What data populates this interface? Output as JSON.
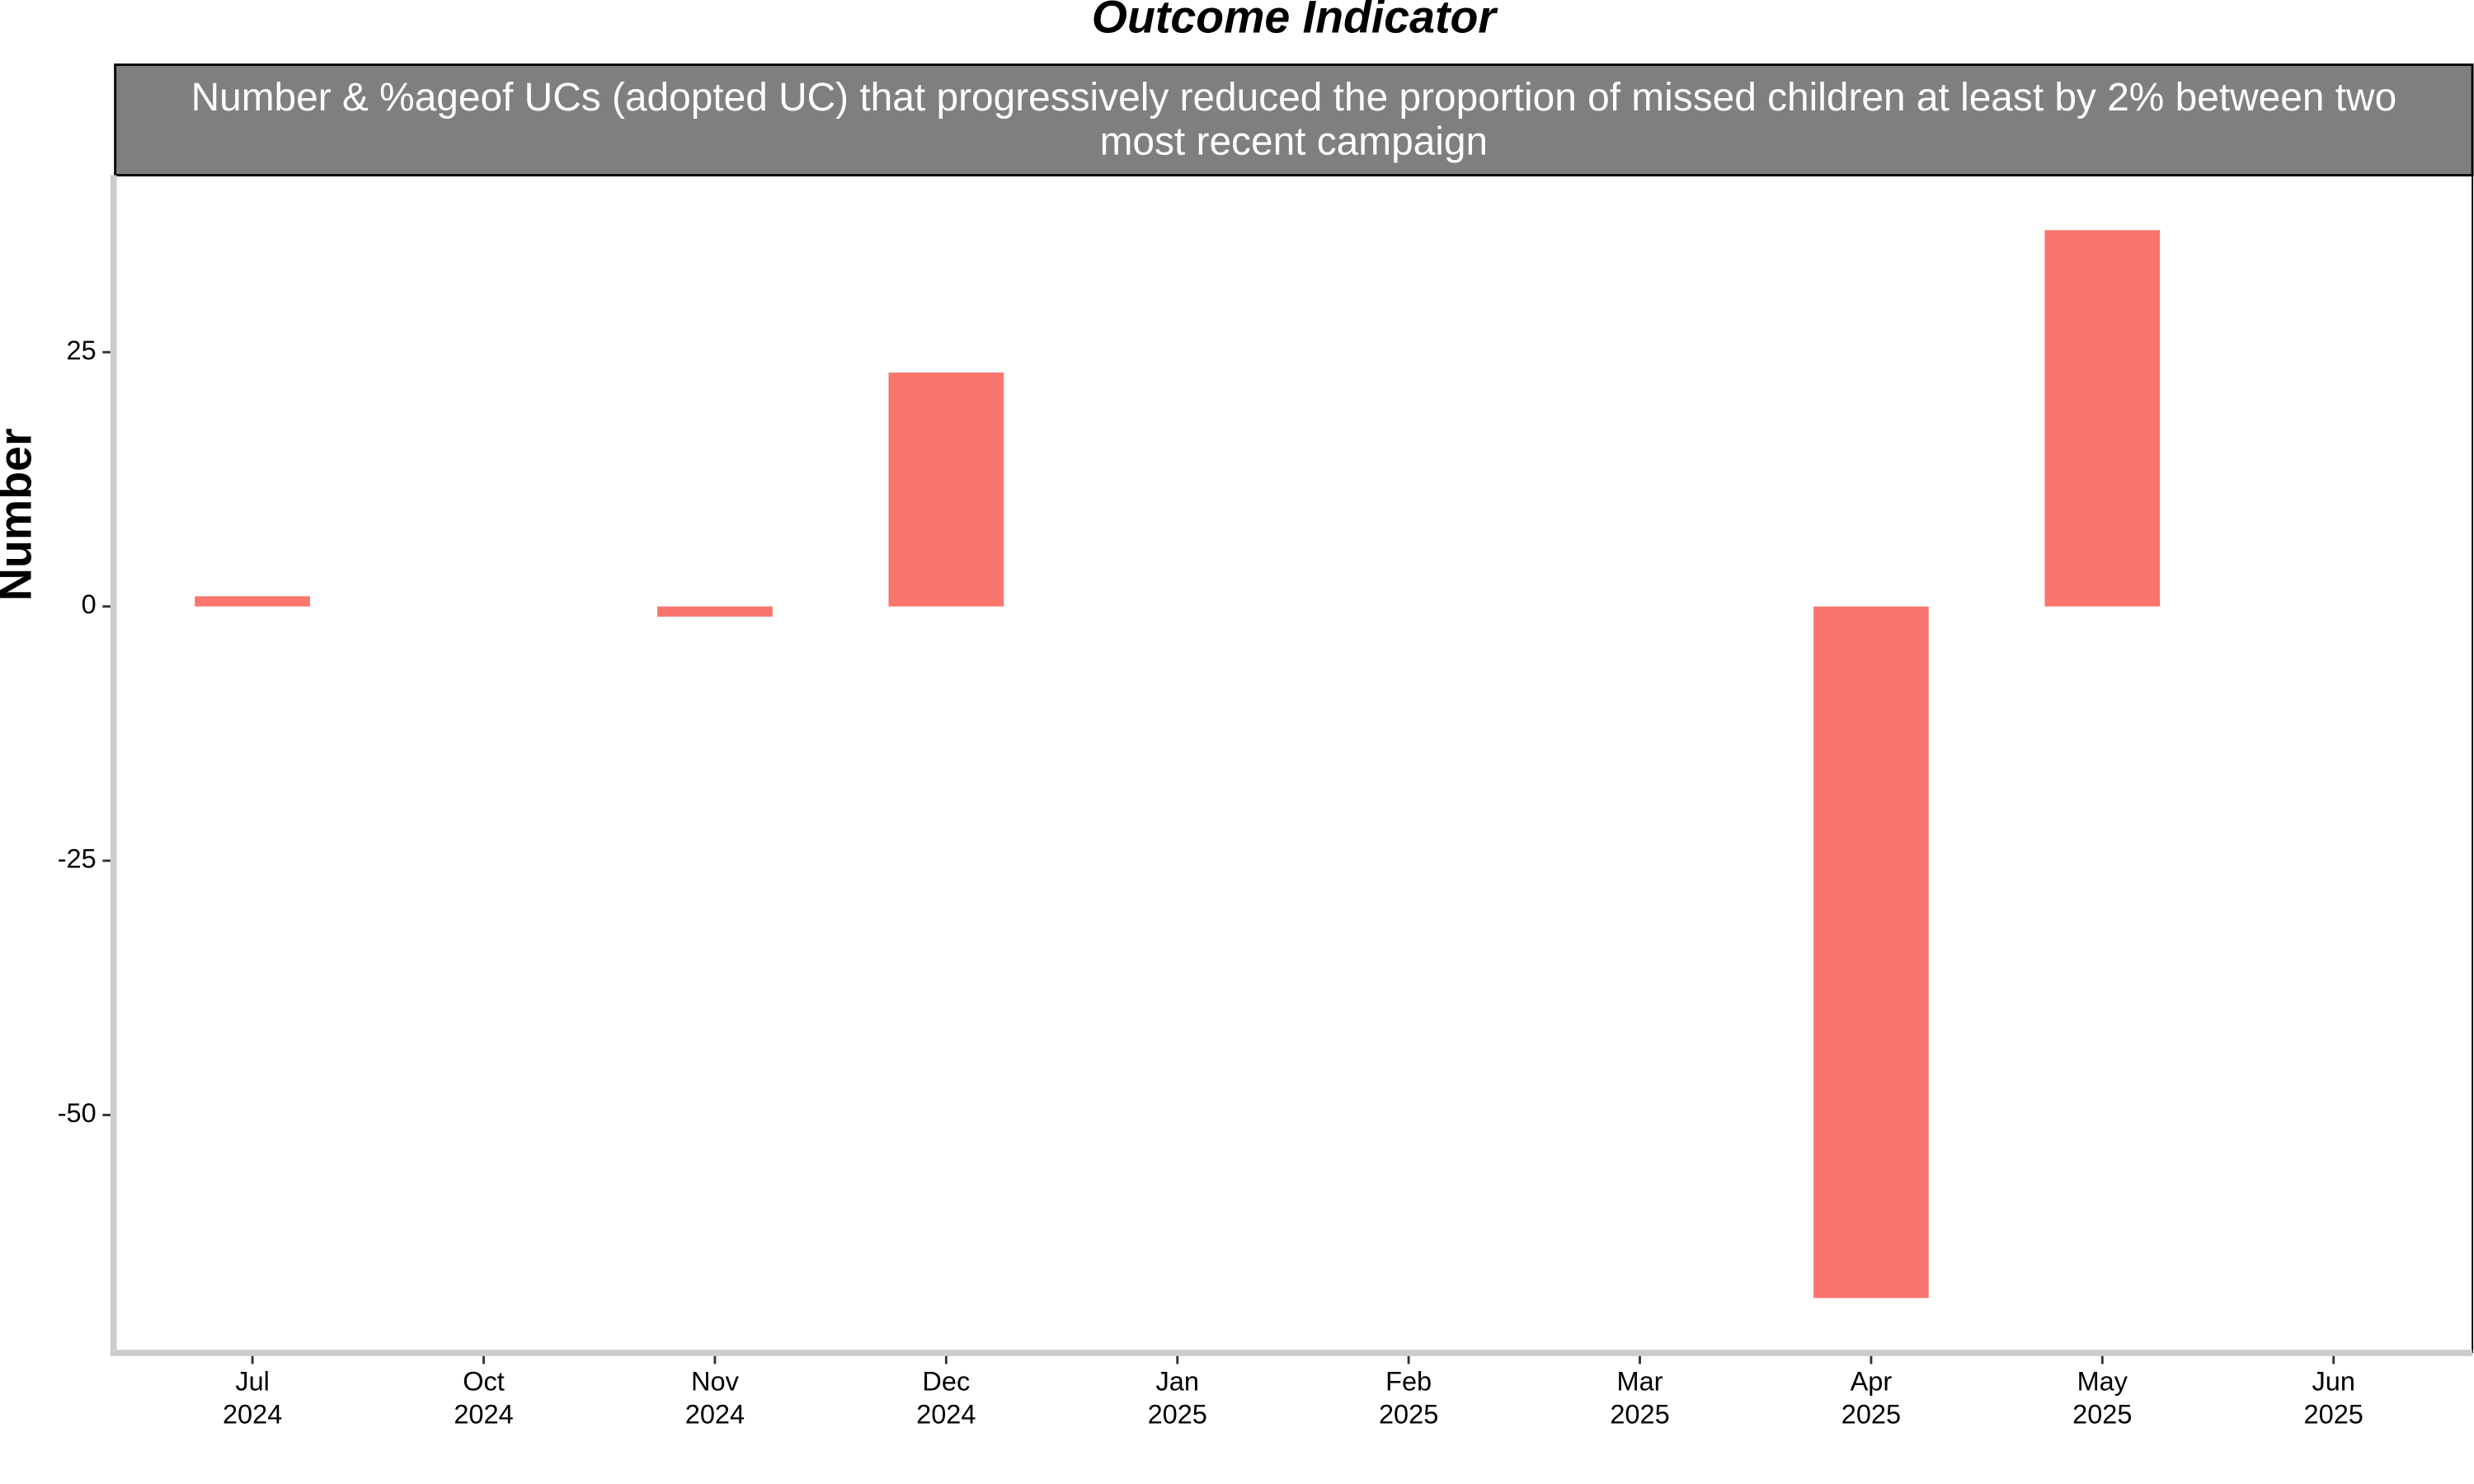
{
  "chart_data": {
    "type": "bar",
    "title": "Outcome Indicator",
    "subtitle": "Number & %ageof UCs (adopted UC) that progressively reduced the proportion of missed children at least by 2% between two most recent campaign",
    "y_label": "Number",
    "categories": [
      [
        "Jul",
        "2024"
      ],
      [
        "Oct",
        "2024"
      ],
      [
        "Nov",
        "2024"
      ],
      [
        "Dec",
        "2024"
      ],
      [
        "Jan",
        "2025"
      ],
      [
        "Feb",
        "2025"
      ],
      [
        "Mar",
        "2025"
      ],
      [
        "Apr",
        "2025"
      ],
      [
        "May",
        "2025"
      ],
      [
        "Jun",
        "2025"
      ]
    ],
    "values": [
      1,
      null,
      -1,
      23,
      null,
      null,
      null,
      -68,
      37,
      null
    ],
    "color": "#F8766D",
    "ylim": [
      -73.4,
      42.4
    ],
    "yticks": [
      -50,
      -25,
      0,
      25
    ],
    "grid": false
  }
}
